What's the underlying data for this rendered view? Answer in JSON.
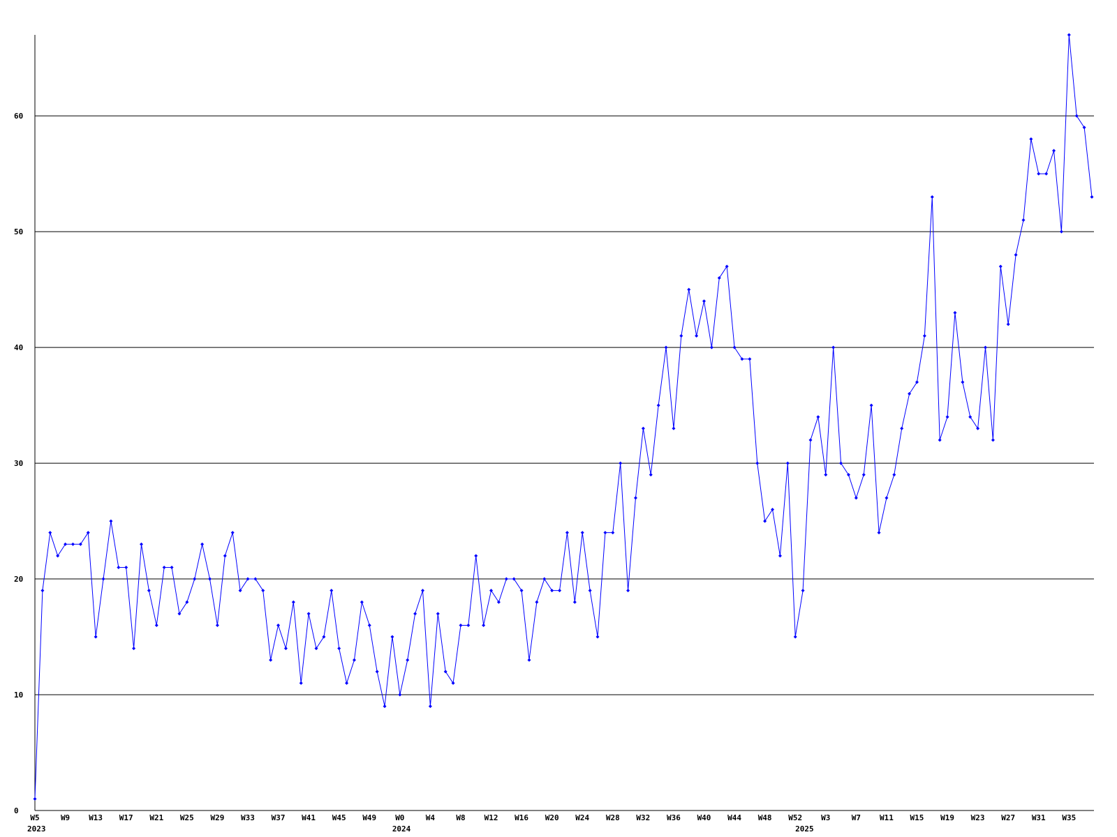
{
  "chart_data": {
    "type": "line",
    "categories": [
      "W5",
      null,
      null,
      null,
      "W9",
      null,
      null,
      null,
      "W13",
      null,
      null,
      null,
      "W17",
      null,
      null,
      null,
      "W21",
      null,
      null,
      null,
      "W25",
      null,
      null,
      null,
      "W29",
      null,
      null,
      null,
      "W33",
      null,
      null,
      null,
      "W37",
      null,
      null,
      null,
      "W41",
      null,
      null,
      null,
      "W45",
      null,
      null,
      null,
      "W49",
      null,
      null,
      null,
      "W0",
      null,
      null,
      null,
      "W4",
      null,
      null,
      null,
      "W8",
      null,
      null,
      null,
      "W12",
      null,
      null,
      null,
      "W16",
      null,
      null,
      null,
      "W20",
      null,
      null,
      null,
      "W24",
      null,
      null,
      null,
      "W28",
      null,
      null,
      null,
      "W32",
      null,
      null,
      null,
      "W36",
      null,
      null,
      null,
      "W40",
      null,
      null,
      null,
      "W44",
      null,
      null,
      null,
      "W48",
      null,
      null,
      null,
      "W52",
      null,
      null,
      null,
      "W3",
      null,
      null,
      null,
      "W7",
      null,
      null,
      null,
      "W11",
      null,
      null,
      null,
      "W15",
      null,
      null,
      null,
      "W19",
      null,
      null,
      null,
      "W23",
      null,
      null,
      null,
      "W27",
      null,
      null,
      null,
      "W31",
      null,
      null,
      null,
      "W35",
      null,
      null,
      null
    ],
    "year_labels": [
      {
        "index": 0,
        "label": "2023"
      },
      {
        "index": 48,
        "label": "2024"
      },
      {
        "index": 101,
        "label": "2025"
      }
    ],
    "series": [
      {
        "color": "#0000ff",
        "values": [
          1,
          19,
          24,
          22,
          23,
          23,
          23,
          24,
          15,
          20,
          25,
          21,
          21,
          14,
          23,
          19,
          16,
          21,
          21,
          17,
          18,
          20,
          23,
          20,
          16,
          22,
          24,
          19,
          20,
          20,
          19,
          13,
          16,
          14,
          18,
          11,
          17,
          14,
          15,
          19,
          14,
          11,
          13,
          18,
          16,
          12,
          9,
          15,
          10,
          13,
          17,
          19,
          9,
          17,
          12,
          11,
          16,
          16,
          22,
          16,
          19,
          18,
          20,
          20,
          19,
          13,
          18,
          20,
          19,
          19,
          24,
          18,
          24,
          19,
          15,
          24,
          24,
          30,
          19,
          27,
          33,
          29,
          35,
          40,
          33,
          41,
          45,
          41,
          44,
          40,
          46,
          47,
          40,
          39,
          39,
          30,
          25,
          26,
          22,
          30,
          15,
          19,
          32,
          34,
          29,
          40,
          30,
          29,
          27,
          29,
          35,
          24,
          27,
          29,
          33,
          36,
          37,
          41,
          53,
          32,
          34,
          43,
          37,
          34,
          33,
          40,
          32,
          47,
          42,
          48,
          51,
          58,
          55,
          55,
          57,
          50,
          67,
          60,
          59,
          53
        ]
      }
    ],
    "ylim": [
      0,
      67
    ],
    "yticks": [
      0,
      10,
      20,
      30,
      40,
      50,
      60
    ],
    "grid": true
  }
}
